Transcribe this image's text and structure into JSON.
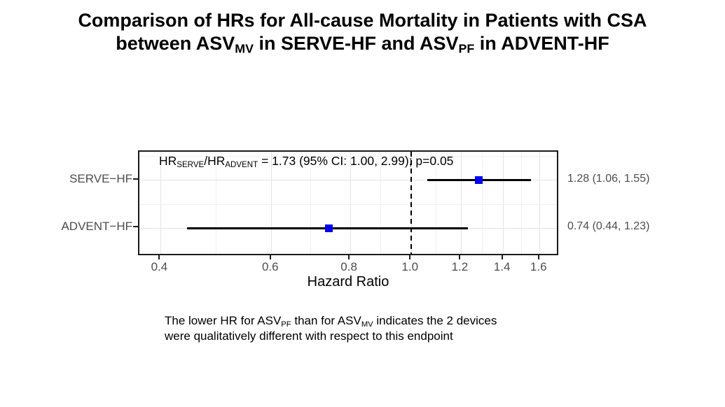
{
  "title": {
    "line1": [
      {
        "text": "Comparison of HRs for All-cause Mortality in Patients with CSA"
      }
    ],
    "line2": [
      {
        "text": "between ASV"
      },
      {
        "text": "MV",
        "sub": true
      },
      {
        "text": " in SERVE-HF and ASV"
      },
      {
        "text": "PF",
        "sub": true
      },
      {
        "text": " in ADVENT-HF"
      }
    ]
  },
  "chart_data": {
    "type": "forest",
    "x_scale": "log",
    "xlim": [
      0.37,
      1.72
    ],
    "x_ticks": [
      0.4,
      0.6,
      0.8,
      1.0,
      1.2,
      1.4,
      1.6
    ],
    "x_tick_labels": [
      "0.4",
      "0.6",
      "0.8",
      "1.0",
      "1.2",
      "1.4",
      "1.6"
    ],
    "xlabel": "Hazard Ratio",
    "ref_line": 1.0,
    "grid": true,
    "legend": "none",
    "annotation_segments": [
      {
        "text": "HR"
      },
      {
        "text": "SERVE",
        "sub": true
      },
      {
        "text": "/HR"
      },
      {
        "text": "ADVENT",
        "sub": true
      },
      {
        "text": " = 1.73 (95% CI: 1.00, 2.99); p=0.05"
      }
    ],
    "rows": [
      {
        "label": "SERVE−HF",
        "hr": 1.28,
        "ci_low": 1.06,
        "ci_high": 1.55,
        "ci_text": "1.28 (1.06, 1.55)"
      },
      {
        "label": "ADVENT−HF",
        "hr": 0.74,
        "ci_low": 0.44,
        "ci_high": 1.23,
        "ci_text": "0.74 (0.44, 1.23)"
      }
    ],
    "colors": {
      "point": "#0000EE",
      "ci_line": "#000000",
      "ref_line": "#000000",
      "grid_major": "#e4e4e4",
      "grid_minor": "#f1f1f1",
      "axis_text": "#4d4d4d",
      "panel_border": "#1a1a1a"
    }
  },
  "footnote": {
    "line1": [
      {
        "text": "The lower HR for ASV"
      },
      {
        "text": "PF",
        "sub": true
      },
      {
        "text": " than for ASV"
      },
      {
        "text": "MV",
        "sub": true
      },
      {
        "text": " indicates the 2 devices"
      }
    ],
    "line2": [
      {
        "text": "were qualitatively different with respect to this endpoint"
      }
    ]
  }
}
